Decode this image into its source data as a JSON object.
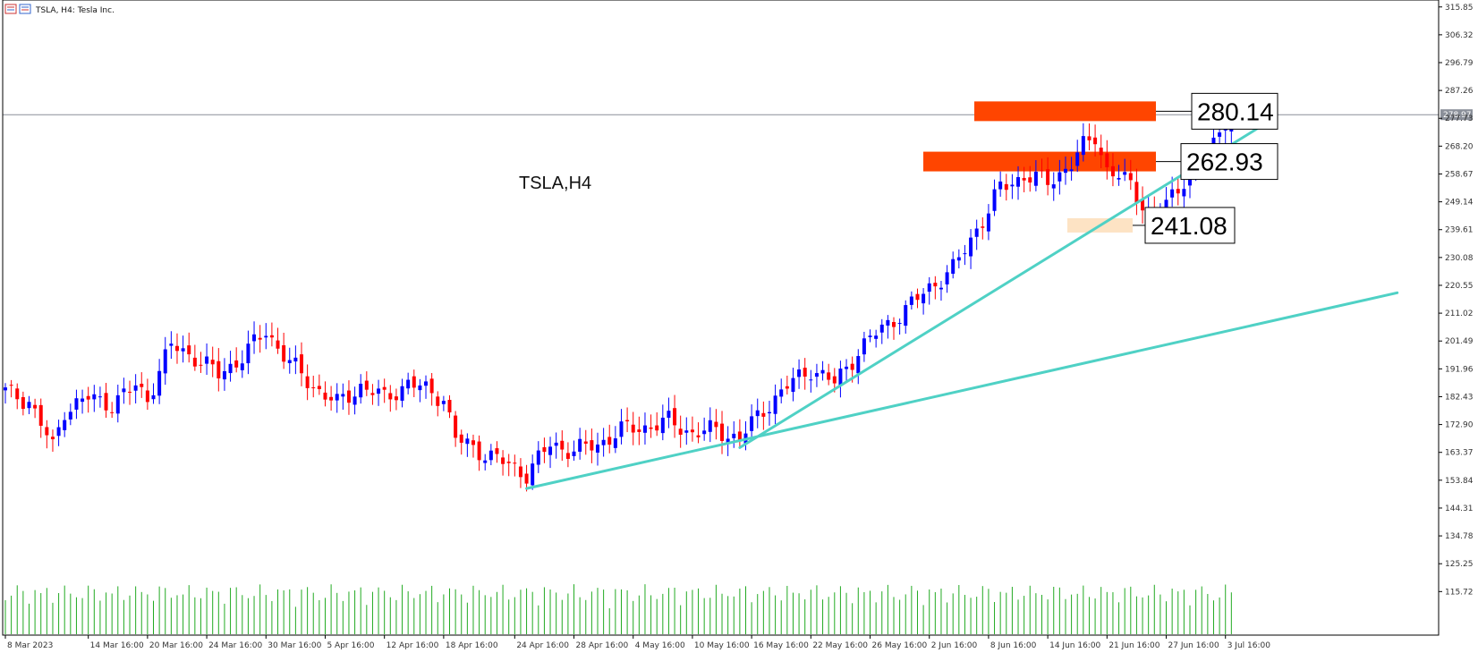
{
  "header": {
    "symbol_text": "TSLA, H4:  Tesla Inc.",
    "icon": "chart-window-icon"
  },
  "watermark": "TSLA,H4",
  "current_price": "278.97",
  "levels": [
    {
      "label": "280.14",
      "value": 280.14,
      "color": "#ff4500"
    },
    {
      "label": "262.93",
      "value": 262.93,
      "color": "#ff4500"
    },
    {
      "label": "241.08",
      "value": 241.08,
      "color": "#fde3c4"
    }
  ],
  "colors": {
    "bull": "#0000ff",
    "bear": "#ff0000",
    "trendline": "#4fd1c5",
    "volume": "#22aa22",
    "grid": "#000000"
  },
  "chart_data": {
    "type": "candlestick",
    "title": "TSLA, H4:  Tesla Inc.",
    "ylim": [
      110.0,
      317.0
    ],
    "y_ticks": [
      "315.85",
      "306.32",
      "296.79",
      "287.26",
      "277.73",
      "268.20",
      "258.67",
      "249.14",
      "239.61",
      "230.08",
      "220.55",
      "211.02",
      "201.49",
      "191.96",
      "182.43",
      "172.90",
      "163.37",
      "153.84",
      "144.31",
      "134.78",
      "125.25",
      "115.72"
    ],
    "x_ticks": [
      {
        "i": 0,
        "label": "8 Mar 2023"
      },
      {
        "i": 14,
        "label": "14 Mar 16:00"
      },
      {
        "i": 24,
        "label": "20 Mar 16:00"
      },
      {
        "i": 34,
        "label": "24 Mar 16:00"
      },
      {
        "i": 44,
        "label": "30 Mar 16:00"
      },
      {
        "i": 54,
        "label": "5 Apr 16:00"
      },
      {
        "i": 64,
        "label": "12 Apr 16:00"
      },
      {
        "i": 74,
        "label": "18 Apr 16:00"
      },
      {
        "i": 86,
        "label": "24 Apr 16:00"
      },
      {
        "i": 96,
        "label": "28 Apr 16:00"
      },
      {
        "i": 106,
        "label": "4 May 16:00"
      },
      {
        "i": 116,
        "label": "10 May 16:00"
      },
      {
        "i": 126,
        "label": "16 May 16:00"
      },
      {
        "i": 136,
        "label": "22 May 16:00"
      },
      {
        "i": 146,
        "label": "26 May 16:00"
      },
      {
        "i": 156,
        "label": "2 Jun 16:00"
      },
      {
        "i": 166,
        "label": "8 Jun 16:00"
      },
      {
        "i": 176,
        "label": "14 Jun 16:00"
      },
      {
        "i": 186,
        "label": "21 Jun 16:00"
      },
      {
        "i": 196,
        "label": "27 Jun 16:00"
      },
      {
        "i": 206,
        "label": "3 Jul 16:00"
      }
    ],
    "waypoints": [
      [
        0,
        184
      ],
      [
        4,
        181
      ],
      [
        8,
        165
      ],
      [
        10,
        178
      ],
      [
        14,
        182
      ],
      [
        18,
        180
      ],
      [
        22,
        186
      ],
      [
        24,
        182
      ],
      [
        28,
        200
      ],
      [
        32,
        196
      ],
      [
        36,
        190
      ],
      [
        40,
        196
      ],
      [
        44,
        205
      ],
      [
        48,
        194
      ],
      [
        52,
        186
      ],
      [
        56,
        180
      ],
      [
        60,
        186
      ],
      [
        64,
        182
      ],
      [
        68,
        187
      ],
      [
        72,
        184
      ],
      [
        74,
        182
      ],
      [
        76,
        168
      ],
      [
        80,
        164
      ],
      [
        84,
        160
      ],
      [
        88,
        156
      ],
      [
        92,
        166
      ],
      [
        96,
        164
      ],
      [
        100,
        166
      ],
      [
        104,
        171
      ],
      [
        108,
        172
      ],
      [
        112,
        174
      ],
      [
        116,
        170
      ],
      [
        120,
        171
      ],
      [
        124,
        168
      ],
      [
        128,
        178
      ],
      [
        132,
        186
      ],
      [
        136,
        192
      ],
      [
        140,
        187
      ],
      [
        144,
        198
      ],
      [
        148,
        206
      ],
      [
        152,
        212
      ],
      [
        156,
        220
      ],
      [
        160,
        226
      ],
      [
        164,
        240
      ],
      [
        166,
        246
      ],
      [
        168,
        254
      ],
      [
        172,
        258
      ],
      [
        176,
        256
      ],
      [
        180,
        262
      ],
      [
        182,
        268
      ],
      [
        184,
        272
      ],
      [
        186,
        260
      ],
      [
        190,
        255
      ],
      [
        194,
        242
      ],
      [
        196,
        248
      ],
      [
        200,
        260
      ],
      [
        203,
        264
      ],
      [
        206,
        278.2
      ],
      [
        207,
        279
      ]
    ],
    "candle_count": 208,
    "trendlines": [
      {
        "from": [
          88,
          151
        ],
        "to": [
          235,
          218
        ]
      },
      {
        "from": [
          124,
          165
        ],
        "to": [
          212,
          275
        ]
      }
    ],
    "current_price_line": 278.97
  }
}
